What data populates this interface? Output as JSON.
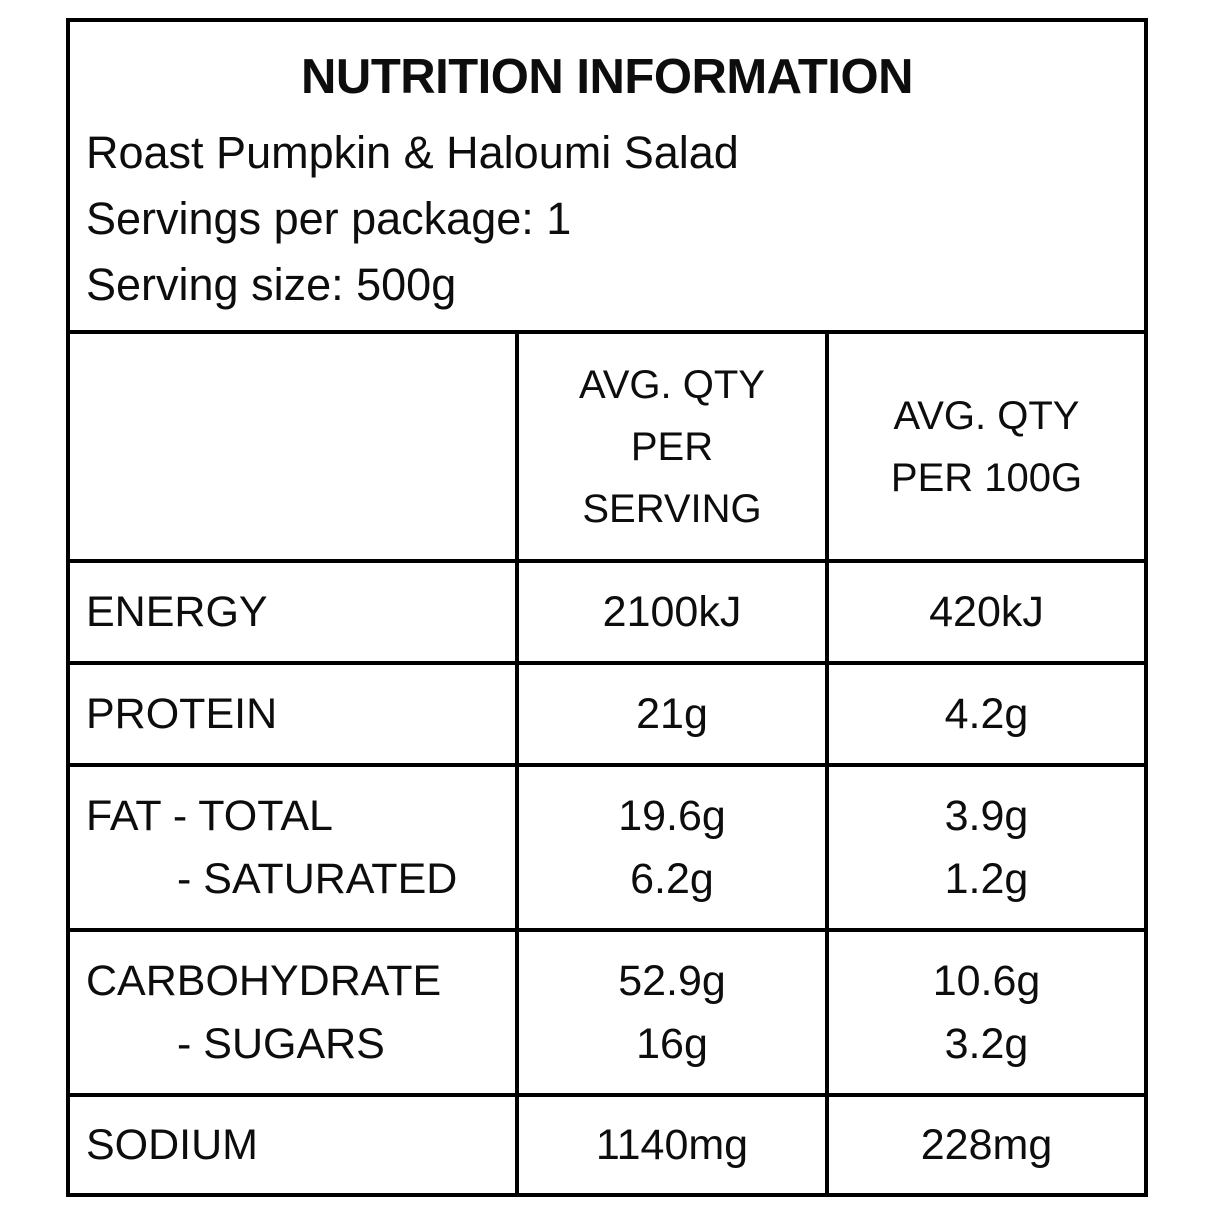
{
  "colors": {
    "border": "#000000",
    "background": "#ffffff",
    "text": "#0d0d0d"
  },
  "label": {
    "title": "NUTRITION INFORMATION",
    "product_name": "Roast Pumpkin & Haloumi Salad",
    "servings_per_package": "Servings per package: 1",
    "serving_size": "Serving size: 500g"
  },
  "table": {
    "header": {
      "col1": "",
      "col2_lines": [
        "AVG. QTY",
        "PER",
        "SERVING"
      ],
      "col3_lines": [
        "AVG. QTY",
        "PER 100G"
      ]
    },
    "rows": [
      {
        "label": "ENERGY",
        "serving": "2100kJ",
        "per100": "420kJ"
      },
      {
        "label": "PROTEIN",
        "serving": "21g",
        "per100": "4.2g"
      },
      {
        "label": "FAT - TOTAL",
        "sublabel": "- SATURATED",
        "serving": "19.6g",
        "serving_sub": "6.2g",
        "per100": "3.9g",
        "per100_sub": "1.2g"
      },
      {
        "label": "CARBOHYDRATE",
        "sublabel": "- SUGARS",
        "serving": "52.9g",
        "serving_sub": "16g",
        "per100": "10.6g",
        "per100_sub": "3.2g"
      },
      {
        "label": "SODIUM",
        "serving": "1140mg",
        "per100": "228mg"
      }
    ]
  }
}
